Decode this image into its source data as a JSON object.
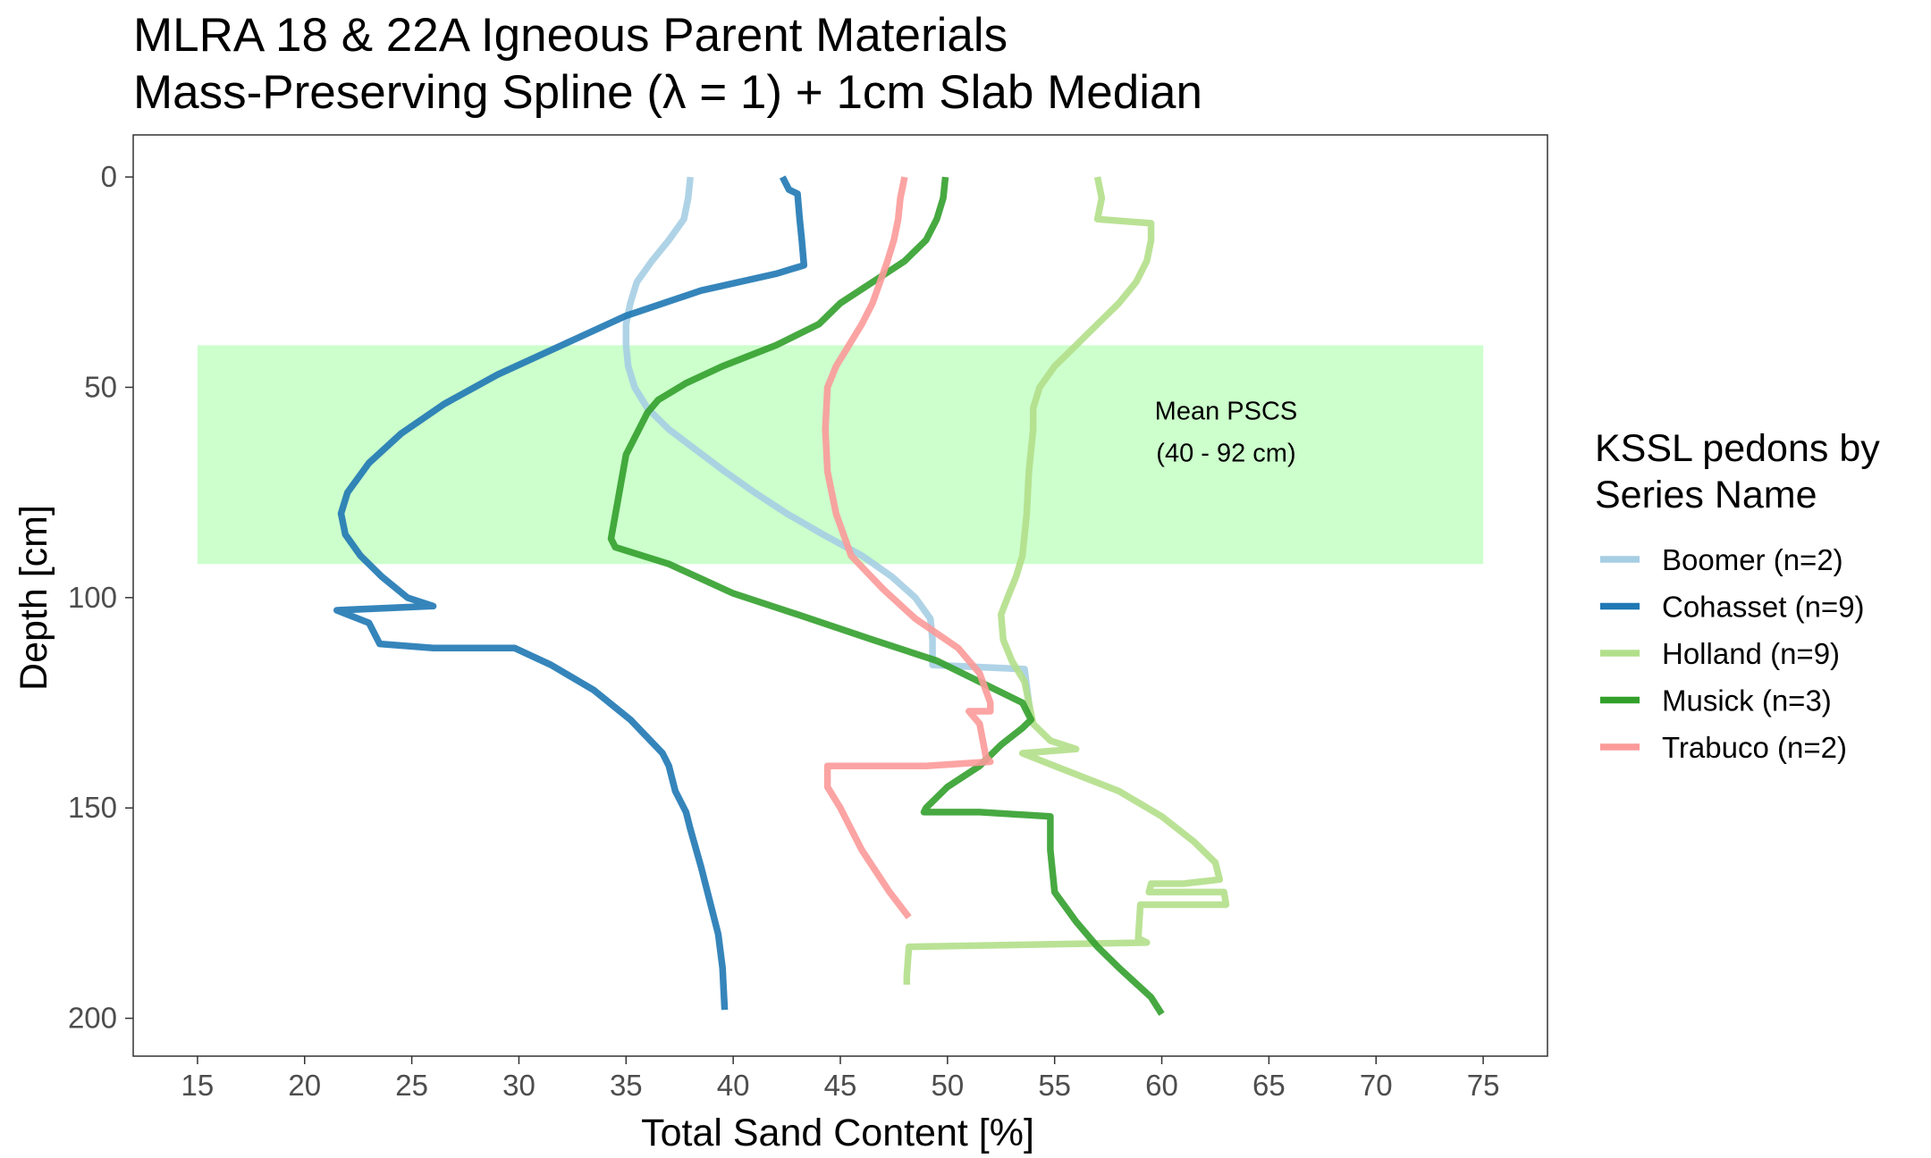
{
  "chart_data": {
    "type": "line",
    "title": [
      "MLRA 18 & 22A Igneous Parent Materials",
      "Mass-Preserving Spline (λ = 1) + 1cm Slab Median"
    ],
    "xlabel": "Total Sand Content [%]",
    "ylabel": "Depth [cm]",
    "xlim": [
      12,
      78
    ],
    "ylim": [
      209,
      -10
    ],
    "y_reversed": true,
    "x_ticks": [
      15,
      20,
      25,
      30,
      35,
      40,
      45,
      50,
      55,
      60,
      65,
      70,
      75
    ],
    "y_ticks": [
      0,
      50,
      100,
      150,
      200
    ],
    "grid": false,
    "legend": {
      "title": [
        "KSSL pedons by",
        "Series Name"
      ],
      "position": "right"
    },
    "band": {
      "x": [
        15,
        75
      ],
      "y": [
        40,
        92
      ],
      "color": "#ccffcc",
      "label_lines": [
        "Mean PSCS",
        "(40 - 92 cm)"
      ],
      "label_x": 63,
      "label_y": [
        55.5,
        65.5
      ]
    },
    "series": [
      {
        "name": "Boomer (n=2)",
        "color": "#a6cee3",
        "points": [
          [
            38,
            0
          ],
          [
            37.9,
            5
          ],
          [
            37.7,
            10
          ],
          [
            37,
            15
          ],
          [
            36.2,
            20
          ],
          [
            35.5,
            25
          ],
          [
            35.2,
            30
          ],
          [
            35,
            35
          ],
          [
            35,
            40
          ],
          [
            35.1,
            45
          ],
          [
            35.4,
            50
          ],
          [
            36,
            55
          ],
          [
            37,
            60
          ],
          [
            38.3,
            65
          ],
          [
            39.6,
            70
          ],
          [
            41,
            75
          ],
          [
            42.5,
            80
          ],
          [
            44.2,
            85
          ],
          [
            46,
            90
          ],
          [
            47.4,
            95
          ],
          [
            48.5,
            100
          ],
          [
            49.2,
            105
          ],
          [
            49.3,
            110
          ],
          [
            49.3,
            116
          ],
          [
            53.6,
            117
          ],
          [
            53.8,
            125
          ],
          [
            53.8,
            127
          ]
        ]
      },
      {
        "name": "Cohasset (n=9)",
        "color": "#1f78b4",
        "points": [
          [
            42.3,
            0
          ],
          [
            42.6,
            3
          ],
          [
            43,
            4
          ],
          [
            43.1,
            10
          ],
          [
            43.2,
            15
          ],
          [
            43.3,
            21
          ],
          [
            42,
            23
          ],
          [
            38.5,
            27
          ],
          [
            35,
            33
          ],
          [
            32,
            40
          ],
          [
            29,
            47
          ],
          [
            26.5,
            54
          ],
          [
            24.5,
            61
          ],
          [
            23,
            68
          ],
          [
            22,
            75
          ],
          [
            21.7,
            80
          ],
          [
            21.9,
            85
          ],
          [
            22.6,
            90
          ],
          [
            23.6,
            95
          ],
          [
            24.8,
            100
          ],
          [
            26,
            102
          ],
          [
            21.5,
            103
          ],
          [
            23,
            106
          ],
          [
            23.5,
            111
          ],
          [
            26,
            112
          ],
          [
            29.8,
            112
          ],
          [
            31.5,
            116
          ],
          [
            33.5,
            122
          ],
          [
            35.2,
            129
          ],
          [
            36.7,
            137
          ],
          [
            37,
            140
          ],
          [
            37.3,
            146
          ],
          [
            37.8,
            151
          ],
          [
            38,
            155
          ],
          [
            38.5,
            164
          ],
          [
            38.8,
            170
          ],
          [
            39.3,
            180
          ],
          [
            39.5,
            188
          ],
          [
            39.6,
            198
          ]
        ]
      },
      {
        "name": "Holland (n=9)",
        "color": "#b2df8a",
        "points": [
          [
            57,
            0
          ],
          [
            57.2,
            5
          ],
          [
            57,
            10
          ],
          [
            59.5,
            11
          ],
          [
            59.5,
            15
          ],
          [
            59.3,
            20
          ],
          [
            58.8,
            25
          ],
          [
            58,
            30
          ],
          [
            57,
            35
          ],
          [
            56,
            40
          ],
          [
            55,
            45
          ],
          [
            54.3,
            50
          ],
          [
            54,
            55
          ],
          [
            54,
            60
          ],
          [
            53.9,
            65
          ],
          [
            53.8,
            70
          ],
          [
            53.7,
            80
          ],
          [
            53.5,
            90
          ],
          [
            53.2,
            95
          ],
          [
            52.8,
            100
          ],
          [
            52.5,
            104
          ],
          [
            52.6,
            110
          ],
          [
            53,
            115
          ],
          [
            53.6,
            120
          ],
          [
            53.8,
            125
          ],
          [
            54,
            130
          ],
          [
            54.8,
            134
          ],
          [
            56,
            136
          ],
          [
            53.5,
            137
          ],
          [
            55,
            140
          ],
          [
            58,
            146
          ],
          [
            60,
            152
          ],
          [
            61.5,
            158
          ],
          [
            62.5,
            163
          ],
          [
            62.7,
            167
          ],
          [
            61,
            168
          ],
          [
            59.5,
            168
          ],
          [
            59.4,
            170
          ],
          [
            62.9,
            170
          ],
          [
            63,
            173
          ],
          [
            59,
            173
          ],
          [
            58.9,
            181
          ],
          [
            59.3,
            182
          ],
          [
            48.2,
            183
          ],
          [
            48.1,
            190
          ],
          [
            48.1,
            192
          ]
        ]
      },
      {
        "name": "Musick (n=3)",
        "color": "#33a02c",
        "points": [
          [
            49.9,
            0
          ],
          [
            49.8,
            5
          ],
          [
            49.5,
            10
          ],
          [
            49,
            15
          ],
          [
            48,
            20
          ],
          [
            46.5,
            25
          ],
          [
            45,
            30
          ],
          [
            44,
            35
          ],
          [
            42,
            40
          ],
          [
            39.5,
            45
          ],
          [
            37.8,
            49
          ],
          [
            36.5,
            53
          ],
          [
            36,
            56
          ],
          [
            35,
            66
          ],
          [
            34.3,
            86
          ],
          [
            34.5,
            88
          ],
          [
            37,
            92
          ],
          [
            40,
            99
          ],
          [
            43,
            104
          ],
          [
            46.5,
            110
          ],
          [
            49.5,
            115
          ],
          [
            51.5,
            120
          ],
          [
            53.5,
            125
          ],
          [
            53.9,
            129
          ],
          [
            53.5,
            131
          ],
          [
            52.5,
            135
          ],
          [
            51.5,
            140
          ],
          [
            50,
            145
          ],
          [
            49,
            150
          ],
          [
            48.9,
            151
          ],
          [
            51.5,
            151
          ],
          [
            54.8,
            152
          ],
          [
            54.8,
            160
          ],
          [
            55,
            170
          ],
          [
            56,
            177
          ],
          [
            57,
            183
          ],
          [
            58,
            188
          ],
          [
            59.5,
            195
          ],
          [
            60,
            199
          ]
        ]
      },
      {
        "name": "Trabuco (n=2)",
        "color": "#fb9a99",
        "points": [
          [
            48,
            0
          ],
          [
            47.8,
            5
          ],
          [
            47.7,
            10
          ],
          [
            47.5,
            15
          ],
          [
            47.2,
            20
          ],
          [
            46.5,
            30
          ],
          [
            46,
            35
          ],
          [
            45.4,
            40
          ],
          [
            44.8,
            45
          ],
          [
            44.4,
            50
          ],
          [
            44.3,
            60
          ],
          [
            44.4,
            70
          ],
          [
            44.8,
            80
          ],
          [
            45.5,
            90
          ],
          [
            47,
            98
          ],
          [
            48.5,
            105
          ],
          [
            50.5,
            112
          ],
          [
            51.5,
            118
          ],
          [
            52,
            125
          ],
          [
            52,
            127
          ],
          [
            51,
            127
          ],
          [
            51.5,
            130
          ],
          [
            51.8,
            138
          ],
          [
            52,
            139
          ],
          [
            49,
            140
          ],
          [
            44.4,
            140
          ],
          [
            44.4,
            145
          ],
          [
            45,
            150
          ],
          [
            46,
            160
          ],
          [
            47.3,
            170
          ],
          [
            48.2,
            176
          ]
        ]
      }
    ]
  }
}
